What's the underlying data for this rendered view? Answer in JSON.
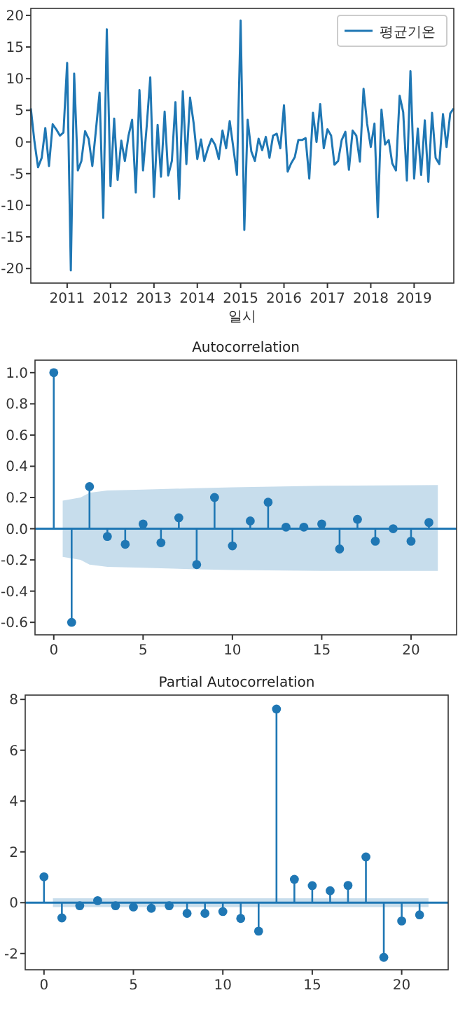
{
  "chart_data": [
    {
      "type": "line",
      "xlabel": "일시",
      "xlim": [
        "2010-03",
        "2019-12"
      ],
      "xticks": [
        "2011",
        "2012",
        "2013",
        "2014",
        "2015",
        "2016",
        "2017",
        "2018",
        "2019"
      ],
      "ylim": [
        -22.3,
        21.1
      ],
      "yticks": [
        -20,
        -15,
        -10,
        -5,
        0,
        5,
        10,
        15,
        20
      ],
      "legend": "top right",
      "x": [
        "2010-03",
        "2010-04",
        "2010-05",
        "2010-06",
        "2010-07",
        "2010-08",
        "2010-09",
        "2010-10",
        "2010-11",
        "2010-12",
        "2011-01",
        "2011-02",
        "2011-03",
        "2011-04",
        "2011-05",
        "2011-06",
        "2011-07",
        "2011-08",
        "2011-09",
        "2011-10",
        "2011-11",
        "2011-12",
        "2012-01",
        "2012-02",
        "2012-03",
        "2012-04",
        "2012-05",
        "2012-06",
        "2012-07",
        "2012-08",
        "2012-09",
        "2012-10",
        "2012-11",
        "2012-12",
        "2013-01",
        "2013-02",
        "2013-03",
        "2013-04",
        "2013-05",
        "2013-06",
        "2013-07",
        "2013-08",
        "2013-09",
        "2013-10",
        "2013-11",
        "2013-12",
        "2014-01",
        "2014-02",
        "2014-03",
        "2014-04",
        "2014-05",
        "2014-06",
        "2014-07",
        "2014-08",
        "2014-09",
        "2014-10",
        "2014-11",
        "2014-12",
        "2015-01",
        "2015-02",
        "2015-03",
        "2015-04",
        "2015-05",
        "2015-06",
        "2015-07",
        "2015-08",
        "2015-09",
        "2015-10",
        "2015-11",
        "2015-12",
        "2016-01",
        "2016-02",
        "2016-03",
        "2016-04",
        "2016-05",
        "2016-06",
        "2016-07",
        "2016-08",
        "2016-09",
        "2016-10",
        "2016-11",
        "2016-12",
        "2017-01",
        "2017-02",
        "2017-03",
        "2017-04",
        "2017-05",
        "2017-06",
        "2017-07",
        "2017-08",
        "2017-09",
        "2017-10",
        "2017-11",
        "2017-12",
        "2018-01",
        "2018-02",
        "2018-03",
        "2018-04",
        "2018-05",
        "2018-06",
        "2018-07",
        "2018-08",
        "2018-09",
        "2018-10",
        "2018-11",
        "2018-12",
        "2019-01",
        "2019-02",
        "2019-03",
        "2019-04",
        "2019-05",
        "2019-06",
        "2019-07",
        "2019-08",
        "2019-09",
        "2019-10",
        "2019-11",
        "2019-12"
      ],
      "series": [
        {
          "name": "평균기온",
          "color": "#1f77b4",
          "values": [
            5.3,
            0,
            -4,
            -2.5,
            2.2,
            -3.8,
            2.8,
            2,
            1,
            1.5,
            12.5,
            -20.3,
            10.8,
            -4.5,
            -3,
            1.7,
            0.5,
            -3.8,
            2,
            7.8,
            -12,
            17.8,
            -7,
            3.7,
            -6,
            0.2,
            -3,
            1,
            3.5,
            -8,
            8.2,
            -4.5,
            2.5,
            10.2,
            -8.7,
            2.7,
            -5.5,
            4.8,
            -5.3,
            -3,
            6.3,
            -9,
            8,
            -3.5,
            7,
            3,
            -2.7,
            0.4,
            -3,
            -1,
            0.5,
            -0.5,
            -2.7,
            1.8,
            -1,
            3.3,
            -1,
            -5.2,
            19.2,
            -13.9,
            3.5,
            -1.5,
            -3,
            0.5,
            -1.3,
            0.8,
            -2.5,
            1,
            1.3,
            -1,
            5.8,
            -4.7,
            -3.4,
            -2.4,
            0.3,
            0.3,
            0.6,
            -5.8,
            4.6,
            0,
            6,
            -1,
            2,
            1,
            -3.6,
            -3,
            0.3,
            1.6,
            -4.4,
            1.8,
            1,
            -3.1,
            8.4,
            2.9,
            -0.8,
            2.9,
            -11.9,
            5.1,
            -0.4,
            0.3,
            -3.4,
            -4.5,
            7.3,
            4.7,
            -6.1,
            11.2,
            -5.8,
            2.1,
            -5.2,
            3.4,
            -6.3,
            4.6,
            -2.5,
            -3.5,
            4.4,
            -0.8,
            4.5,
            5.3
          ]
        }
      ]
    },
    {
      "type": "lollipop",
      "title": "Autocorrelation",
      "xlim": [
        -1.05,
        22.55
      ],
      "xticks": [
        0,
        5,
        10,
        15,
        20
      ],
      "ylim": [
        -0.68,
        1.08
      ],
      "yticks": [
        {
          "value": -0.6,
          "label": "-0.6"
        },
        {
          "value": -0.4,
          "label": "-0.4"
        },
        {
          "value": -0.2,
          "label": "-0.2"
        },
        {
          "value": 0,
          "label": "0.0"
        },
        {
          "value": 0.2,
          "label": "0.2"
        },
        {
          "value": 0.4,
          "label": "0.4"
        },
        {
          "value": 0.6,
          "label": "0.6"
        },
        {
          "value": 0.8,
          "label": "0.8"
        },
        {
          "value": 1,
          "label": "1.0"
        }
      ],
      "series": [
        {
          "type": "line",
          "color": "#1f77b4",
          "x": [
            -1.05,
            0.5,
            1.5,
            2,
            3,
            5,
            8,
            10,
            15,
            21.5,
            22.55
          ],
          "values": [
            0,
            0,
            0,
            0,
            0,
            0,
            0,
            0,
            0,
            0,
            0
          ],
          "lower": [
            null,
            -0.18,
            -0.2,
            -0.23,
            -0.245,
            -0.25,
            -0.26,
            -0.265,
            -0.27,
            -0.27,
            null
          ],
          "upper": [
            null,
            0.18,
            0.2,
            0.23,
            0.245,
            0.25,
            0.26,
            0.265,
            0.275,
            0.28,
            null
          ]
        },
        {
          "color": "#1f77b4",
          "marker": "circle",
          "x": [
            0,
            1,
            2,
            3,
            4,
            5,
            6,
            7,
            8,
            9,
            10,
            11,
            12,
            13,
            14,
            15,
            16,
            17,
            18,
            19,
            20,
            21
          ],
          "values": [
            1,
            -0.6,
            0.27,
            -0.05,
            -0.1,
            0.03,
            -0.09,
            0.07,
            -0.23,
            0.2,
            -0.11,
            0.05,
            0.17,
            0.01,
            0.01,
            0.03,
            -0.13,
            0.06,
            -0.08,
            0.0,
            -0.08,
            0.04
          ]
        }
      ]
    },
    {
      "type": "lollipop",
      "title": "Partial Autocorrelation",
      "xlim": [
        -1.05,
        22.6
      ],
      "xticks": [
        0,
        5,
        10,
        15,
        20
      ],
      "ylim": [
        -2.64,
        8.17
      ],
      "yticks": [
        -2,
        0,
        2,
        4,
        6,
        8
      ],
      "series": [
        {
          "type": "line",
          "color": "#1f77b4",
          "x": [
            -1.05,
            0.5,
            21.5,
            22.6
          ],
          "values": [
            0,
            0,
            0,
            0
          ],
          "lower": [
            null,
            -0.17,
            -0.17,
            null
          ],
          "upper": [
            null,
            0.17,
            0.17,
            null
          ]
        },
        {
          "color": "#1f77b4",
          "marker": "circle",
          "x": [
            0,
            1,
            2,
            3,
            4,
            5,
            6,
            7,
            8,
            9,
            10,
            11,
            12,
            13,
            14,
            15,
            16,
            17,
            18,
            19,
            20,
            21
          ],
          "values": [
            1.02,
            -0.6,
            -0.12,
            0.08,
            -0.12,
            -0.17,
            -0.22,
            -0.12,
            -0.42,
            -0.42,
            -0.35,
            -0.62,
            -1.12,
            7.62,
            0.92,
            0.67,
            0.47,
            0.68,
            1.8,
            -2.15,
            -0.72,
            -0.48
          ]
        }
      ]
    }
  ]
}
